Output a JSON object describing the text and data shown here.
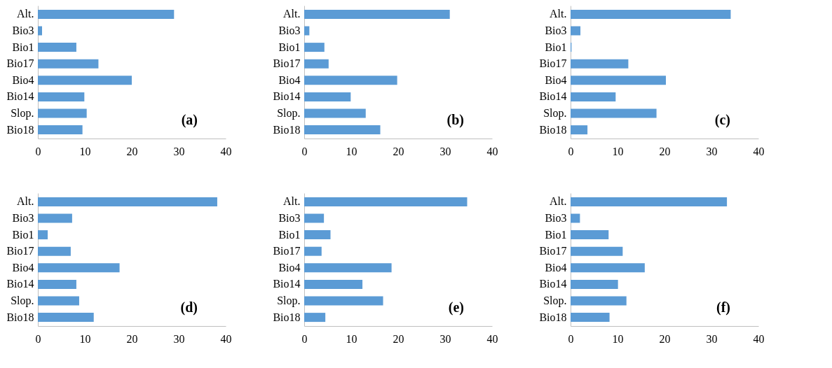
{
  "chart_data": [
    {
      "type": "bar",
      "orientation": "horizontal",
      "categories": [
        "Alt.",
        "Bio3",
        "Bio1",
        "Bio17",
        "Bio4",
        "Bio14",
        "Slop.",
        "Bio18"
      ],
      "values": [
        29.0,
        0.9,
        8.2,
        12.9,
        20.0,
        9.9,
        10.4,
        9.5
      ],
      "color": "#5b9bd5",
      "xlim": [
        0,
        40
      ],
      "xticks": [
        0,
        10,
        20,
        30,
        40
      ],
      "annotations": [
        "(a)"
      ]
    },
    {
      "type": "bar",
      "orientation": "horizontal",
      "categories": [
        "Alt.",
        "Bio3",
        "Bio1",
        "Bio17",
        "Bio4",
        "Bio14",
        "Slop.",
        "Bio18"
      ],
      "values": [
        31.0,
        1.1,
        4.3,
        5.2,
        19.8,
        9.9,
        13.1,
        16.2
      ],
      "color": "#5b9bd5",
      "xlim": [
        0,
        40
      ],
      "xticks": [
        0,
        10,
        20,
        30,
        40
      ],
      "annotations": [
        "(b)"
      ]
    },
    {
      "type": "bar",
      "orientation": "horizontal",
      "categories": [
        "Alt.",
        "Bio3",
        "Bio1",
        "Bio17",
        "Bio4",
        "Bio14",
        "Slop.",
        "Bio18"
      ],
      "values": [
        34.1,
        2.1,
        0.2,
        12.3,
        20.3,
        9.6,
        18.3,
        3.6
      ],
      "color": "#5b9bd5",
      "xlim": [
        0,
        40
      ],
      "xticks": [
        0,
        10,
        20,
        30,
        40
      ],
      "annotations": [
        "(c)"
      ]
    },
    {
      "type": "bar",
      "orientation": "horizontal",
      "categories": [
        "Alt.",
        "Bio3",
        "Bio1",
        "Bio17",
        "Bio4",
        "Bio14",
        "Slop.",
        "Bio18"
      ],
      "values": [
        38.2,
        7.3,
        2.1,
        7.0,
        17.4,
        8.2,
        8.8,
        11.9
      ],
      "color": "#5b9bd5",
      "xlim": [
        0,
        40
      ],
      "xticks": [
        0,
        10,
        20,
        30,
        40
      ],
      "annotations": [
        "(d)"
      ]
    },
    {
      "type": "bar",
      "orientation": "horizontal",
      "categories": [
        "Alt.",
        "Bio3",
        "Bio1",
        "Bio17",
        "Bio4",
        "Bio14",
        "Slop.",
        "Bio18"
      ],
      "values": [
        34.7,
        4.2,
        5.6,
        3.7,
        18.6,
        12.4,
        16.8,
        4.5
      ],
      "color": "#5b9bd5",
      "xlim": [
        0,
        40
      ],
      "xticks": [
        0,
        10,
        20,
        30,
        40
      ],
      "annotations": [
        "(e)"
      ]
    },
    {
      "type": "bar",
      "orientation": "horizontal",
      "categories": [
        "Alt.",
        "Bio3",
        "Bio1",
        "Bio17",
        "Bio4",
        "Bio14",
        "Slop.",
        "Bio18"
      ],
      "values": [
        33.3,
        2.0,
        8.1,
        11.1,
        15.8,
        10.1,
        11.9,
        8.3
      ],
      "color": "#5b9bd5",
      "xlim": [
        0,
        40
      ],
      "xticks": [
        0,
        10,
        20,
        30,
        40
      ],
      "annotations": [
        "(f)"
      ]
    }
  ]
}
